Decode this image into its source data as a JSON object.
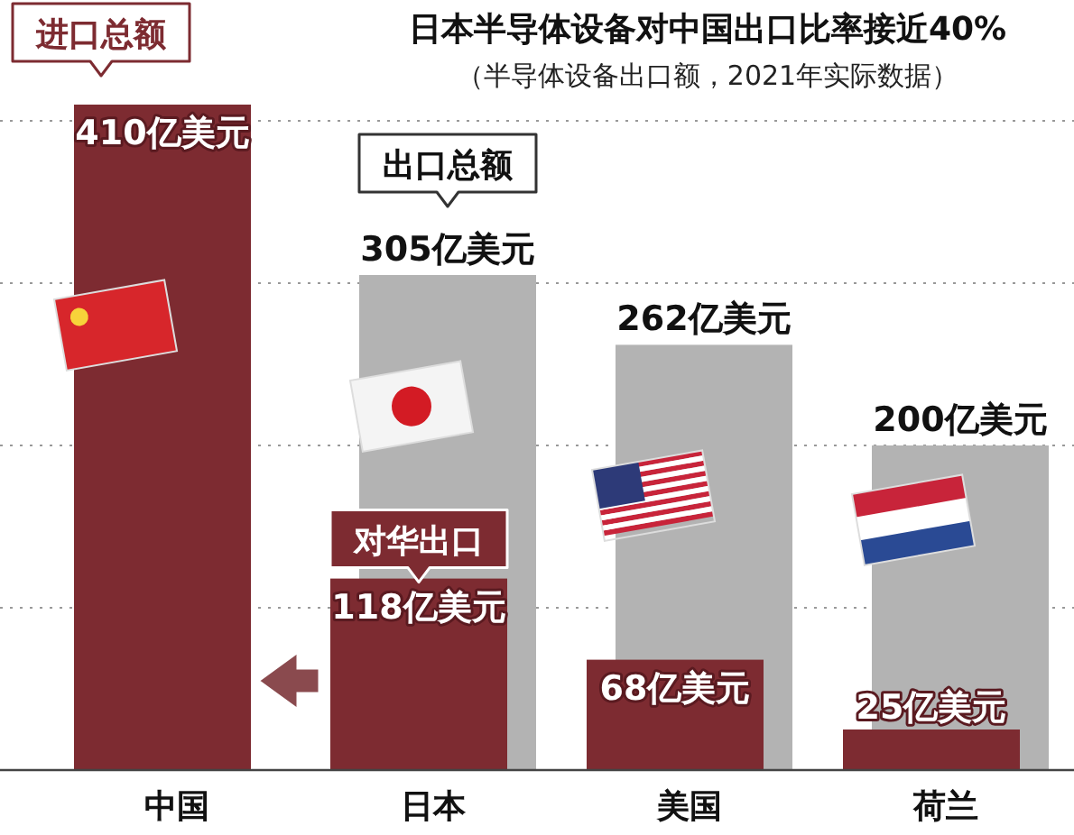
{
  "chart_data": {
    "type": "bar",
    "title": "日本半导体设备对中国出口比率接近40%",
    "subtitle": "（半导体设备出口额，2021年实际数据）",
    "categories": [
      "中国",
      "日本",
      "美国",
      "荷兰"
    ],
    "series": [
      {
        "name": "出口总额",
        "color": "#b3b3b3",
        "values": [
          null,
          305,
          262,
          200
        ],
        "value_labels": [
          null,
          "305亿美元",
          "262亿美元",
          "200亿美元"
        ]
      },
      {
        "name": "进口总额",
        "color": "#7d2b31",
        "values": [
          410,
          null,
          null,
          null
        ],
        "value_labels": [
          "410亿美元",
          null,
          null,
          null
        ]
      },
      {
        "name": "对华出口",
        "color": "#7d2b31",
        "values": [
          null,
          118,
          68,
          25
        ],
        "value_labels": [
          null,
          "118亿美元",
          "68亿美元",
          "25亿美元"
        ]
      }
    ],
    "yticks": [
      {
        "value": 100,
        "label": null
      },
      {
        "value": 200,
        "label": null
      },
      {
        "value": 300,
        "label": null
      },
      {
        "value": 400,
        "label": null
      }
    ],
    "grid": "y"
  }
}
